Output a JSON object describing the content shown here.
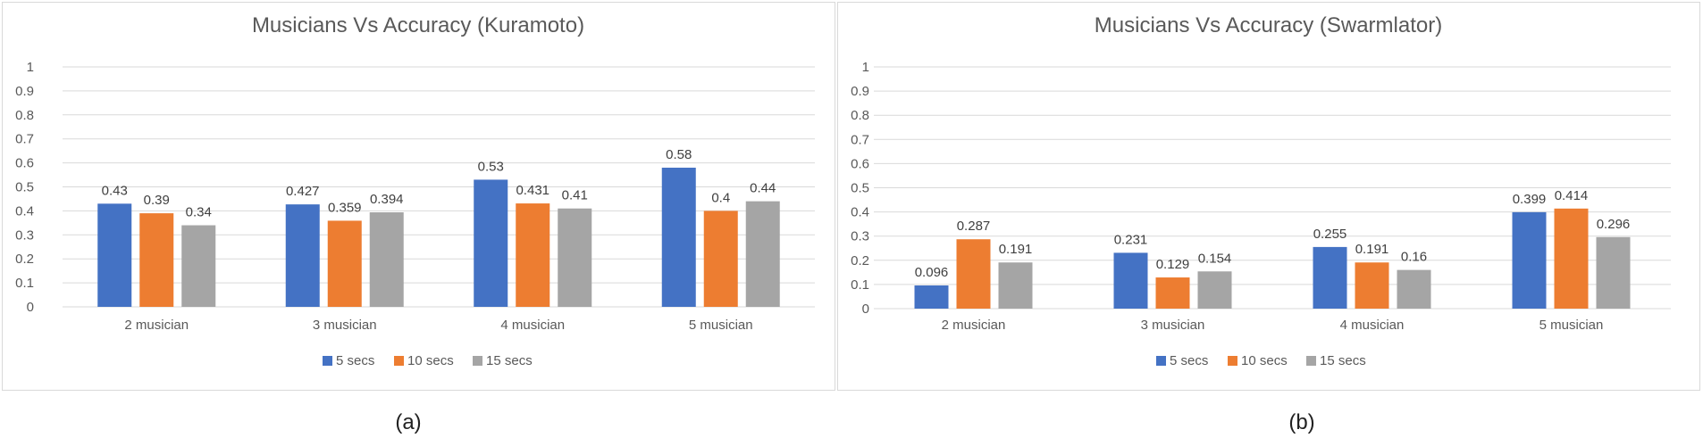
{
  "chart_data": [
    {
      "type": "bar",
      "title": "Musicians Vs Accuracy (Kuramoto)",
      "categories": [
        "2 musician",
        "3 musician",
        "4 musician",
        "5 musician"
      ],
      "series": [
        {
          "name": "5 secs",
          "values": [
            0.43,
            0.427,
            0.53,
            0.58
          ],
          "labels": [
            "0.43",
            "0.427",
            "0.53",
            "0.58"
          ]
        },
        {
          "name": "10 secs",
          "values": [
            0.39,
            0.359,
            0.431,
            0.4
          ],
          "labels": [
            "0.39",
            "0.359",
            "0.431",
            "0.4"
          ]
        },
        {
          "name": "15 secs",
          "values": [
            0.34,
            0.394,
            0.41,
            0.44
          ],
          "labels": [
            "0.34",
            "0.394",
            "0.41",
            "0.44"
          ]
        }
      ],
      "yticks": [
        "0",
        "0.1",
        "0.2",
        "0.3",
        "0.4",
        "0.5",
        "0.6",
        "0.7",
        "0.8",
        "0.9",
        "1"
      ],
      "ylim": [
        0,
        1
      ],
      "grid": true,
      "legend": "bottom",
      "caption": "(a)"
    },
    {
      "type": "bar",
      "title": "Musicians Vs Accuracy (Swarmlator)",
      "categories": [
        "2 musician",
        "3 musician",
        "4 musician",
        "5 musician"
      ],
      "series": [
        {
          "name": "5 secs",
          "values": [
            0.096,
            0.231,
            0.255,
            0.399
          ],
          "labels": [
            "0.096",
            "0.231",
            "0.255",
            "0.399"
          ]
        },
        {
          "name": "10 secs",
          "values": [
            0.287,
            0.129,
            0.191,
            0.414
          ],
          "labels": [
            "0.287",
            "0.129",
            "0.191",
            "0.414"
          ]
        },
        {
          "name": "15 secs",
          "values": [
            0.191,
            0.154,
            0.16,
            0.296
          ],
          "labels": [
            "0.191",
            "0.154",
            "0.16",
            "0.296"
          ]
        }
      ],
      "yticks": [
        "0",
        "0.1",
        "0.2",
        "0.3",
        "0.4",
        "0.5",
        "0.6",
        "0.7",
        "0.8",
        "0.9",
        "1"
      ],
      "ylim": [
        0,
        1
      ],
      "grid": true,
      "legend": "bottom",
      "caption": "(b)"
    }
  ],
  "colors": {
    "series": [
      "#4472C4",
      "#ED7D31",
      "#A5A5A5"
    ],
    "gridline": "#D9D9D9",
    "axis_text": "#595959",
    "frame": "#D9D9D9"
  }
}
